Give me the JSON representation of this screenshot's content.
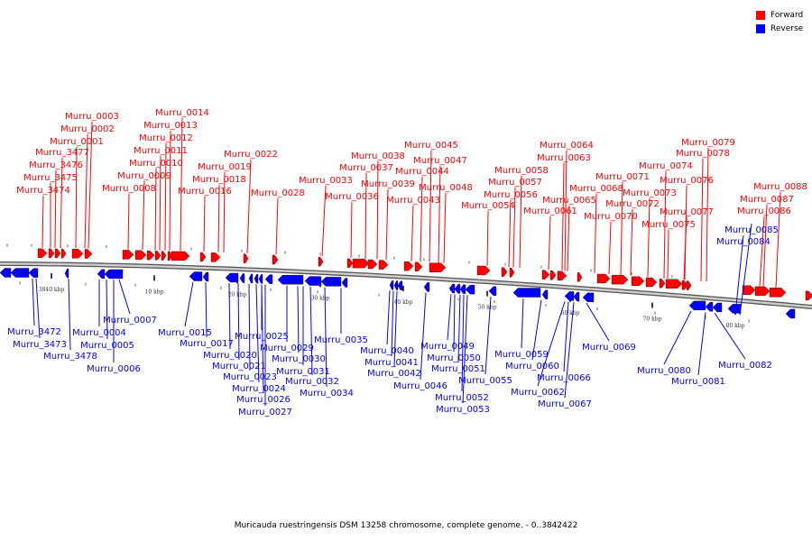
{
  "caption": "Muricauda ruestringensis DSM 13258 chromosome, complete genome. - 0..3842422",
  "legend": [
    {
      "label": "Forward",
      "color": "#ff0000"
    },
    {
      "label": "Reverse",
      "color": "#0000ff"
    }
  ],
  "colors": {
    "forward": "#ff0000",
    "reverse": "#0000ff",
    "backbone": "#888888"
  },
  "ticks": [
    "3840 kbp",
    "10 kbp",
    "20 kbp",
    "30 kbp",
    "40 kbp",
    "50 kbp",
    "60 kbp",
    "70 kbp",
    "80 kbp"
  ],
  "forward_labels": [
    "Murru_0003",
    "Murru_0002",
    "Murru_0001",
    "Murru_3477",
    "Murru_3476",
    "Murru_3475",
    "Murru_3474",
    "Murru_0014",
    "Murru_0013",
    "Murru_0012",
    "Murru_0011",
    "Murru_0010",
    "Murru_0009",
    "Murru_0008",
    "Murru_0022",
    "Murru_0019",
    "Murru_0018",
    "Murru_0016",
    "Murru_0028",
    "Murru_0033",
    "Murru_0038",
    "Murru_0037",
    "Murru_0036",
    "Murru_0039",
    "Murru_0045",
    "Murru_0047",
    "Murru_0044",
    "Murru_0043",
    "Murru_0048",
    "Murru_0058",
    "Murru_0057",
    "Murru_0056",
    "Murru_0054",
    "Murru_0064",
    "Murru_0063",
    "Murru_0065",
    "Murru_0061",
    "Murru_0068",
    "Murru_0071",
    "Murru_0070",
    "Murru_0072",
    "Murru_0073",
    "Murru_0074",
    "Murru_0079",
    "Murru_0078",
    "Murru_0076",
    "Murru_0077",
    "Murru_0075",
    "Murru_0088",
    "Murru_0087",
    "Murru_0086"
  ],
  "reverse_labels": [
    "Murru_0085",
    "Murru_0084",
    "Murru_3472",
    "Murru_3473",
    "Murru_3478",
    "Murru_0004",
    "Murru_0005",
    "Murru_0006",
    "Murru_0007",
    "Murru_0015",
    "Murru_0017",
    "Murru_0020",
    "Murru_0021",
    "Murru_0023",
    "Murru_0024",
    "Murru_0025",
    "Murru_0026",
    "Murru_0027",
    "Murru_0029",
    "Murru_0030",
    "Murru_0031",
    "Murru_0032",
    "Murru_0034",
    "Murru_0035",
    "Murru_0040",
    "Murru_0041",
    "Murru_0042",
    "Murru_0046",
    "Murru_0049",
    "Murru_0050",
    "Murru_0051",
    "Murru_0052",
    "Murru_0053",
    "Murru_0055",
    "Murru_0059",
    "Murru_0060",
    "Murru_0062",
    "Murru_0066",
    "Murru_0067",
    "Murru_0069",
    "Murru_0080",
    "Murru_0081",
    "Murru_0082"
  ]
}
